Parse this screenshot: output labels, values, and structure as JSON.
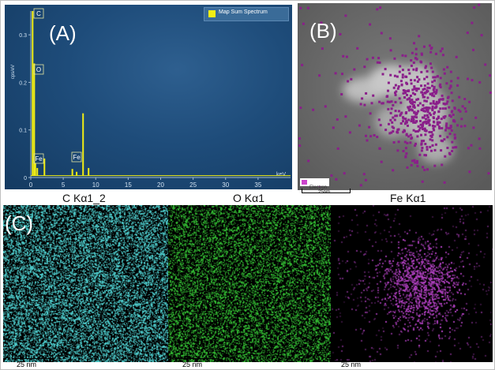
{
  "panel_a": {
    "label": "(A)",
    "legend": "Map Sum Spectrum",
    "y_axis_label": "cps/eV",
    "x_axis_label": "keV",
    "y_ticks": [
      "0",
      "0.1",
      "0.2",
      "0.3"
    ],
    "x_ticks": [
      "0",
      "5",
      "10",
      "15",
      "20",
      "25",
      "30",
      "35"
    ],
    "peak_labels": [
      "C",
      "O",
      "Fe",
      "Fe"
    ],
    "colors": {
      "spectrum": "#f2ee14",
      "background": "#1e4c7a"
    },
    "chart_data": {
      "type": "line",
      "title": "",
      "xlabel": "keV",
      "ylabel": "cps/eV",
      "xlim": [
        0,
        40
      ],
      "ylim": [
        0,
        0.35
      ],
      "legend_position": "top-right",
      "series": [
        {
          "name": "Map Sum Spectrum",
          "peaks": [
            {
              "energy": 0.28,
              "height": 0.35,
              "label": "C"
            },
            {
              "energy": 0.53,
              "height": 0.24,
              "label": "O"
            },
            {
              "energy": 0.7,
              "height": 0.03,
              "label": "Fe"
            },
            {
              "energy": 1.0,
              "height": 0.02
            },
            {
              "energy": 2.1,
              "height": 0.04
            },
            {
              "energy": 6.4,
              "height": 0.018,
              "label": "Fe"
            },
            {
              "energy": 7.06,
              "height": 0.012
            },
            {
              "energy": 8.05,
              "height": 0.135
            },
            {
              "energy": 8.9,
              "height": 0.02
            }
          ]
        }
      ]
    }
  },
  "panel_b": {
    "label": "(B)",
    "legend": "Electron",
    "scale": "25nm",
    "colors": {
      "points": "#8a1f8a",
      "legend_swatch": "#cc44cc"
    }
  },
  "panel_c": {
    "label": "(C)",
    "maps": [
      {
        "title": "C Kα1_2",
        "scale": "25 nm",
        "color": "#4fd0d0"
      },
      {
        "title": "O Kα1",
        "scale": "25 nm",
        "color": "#34c034"
      },
      {
        "title": "Fe Kα1",
        "scale": "25 nm",
        "color": "#b040c0"
      }
    ]
  }
}
